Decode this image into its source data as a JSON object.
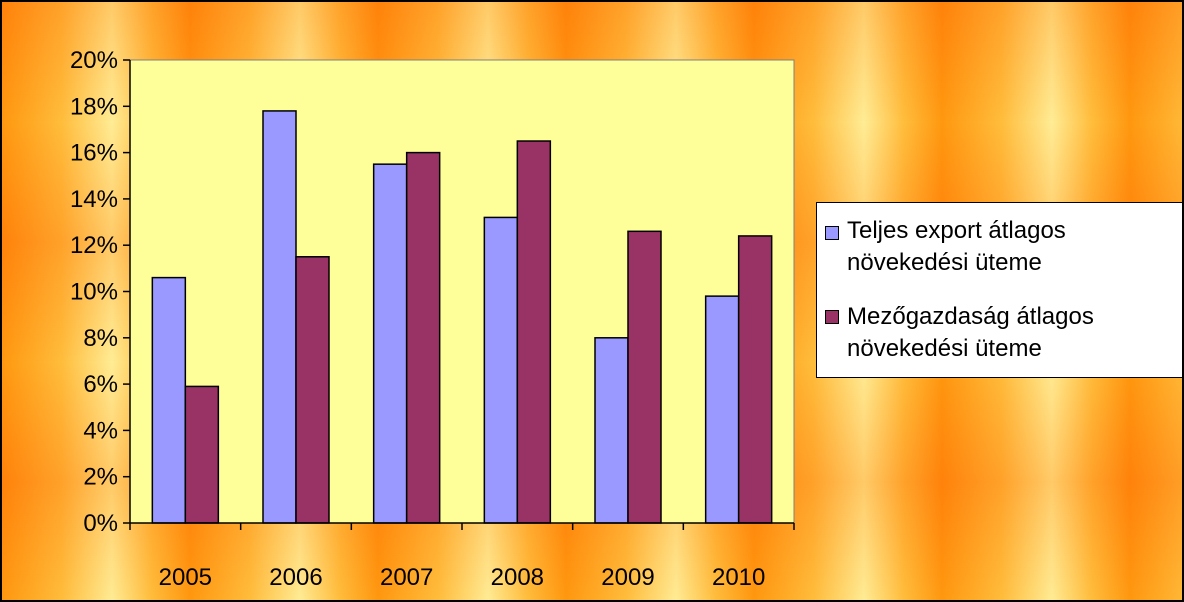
{
  "chart_data": {
    "type": "bar",
    "categories": [
      "2005",
      "2006",
      "2007",
      "2008",
      "2009",
      "2010"
    ],
    "series": [
      {
        "name": "Teljes export átlagos növekedési üteme",
        "values": [
          10.6,
          17.8,
          15.5,
          13.2,
          8.0,
          9.8
        ],
        "color": "#9999ff"
      },
      {
        "name": "Mezőgazdaság átlagos növekedési üteme",
        "values": [
          5.9,
          11.5,
          16.0,
          16.5,
          12.6,
          12.4
        ],
        "color": "#993366"
      }
    ],
    "ylim": [
      0,
      20
    ],
    "yticks": [
      "0%",
      "2%",
      "4%",
      "6%",
      "8%",
      "10%",
      "12%",
      "14%",
      "16%",
      "18%",
      "20%"
    ],
    "plot_background": "#ffff99",
    "grid": false,
    "legend_position": "right",
    "title": "",
    "xlabel": "",
    "ylabel": ""
  }
}
